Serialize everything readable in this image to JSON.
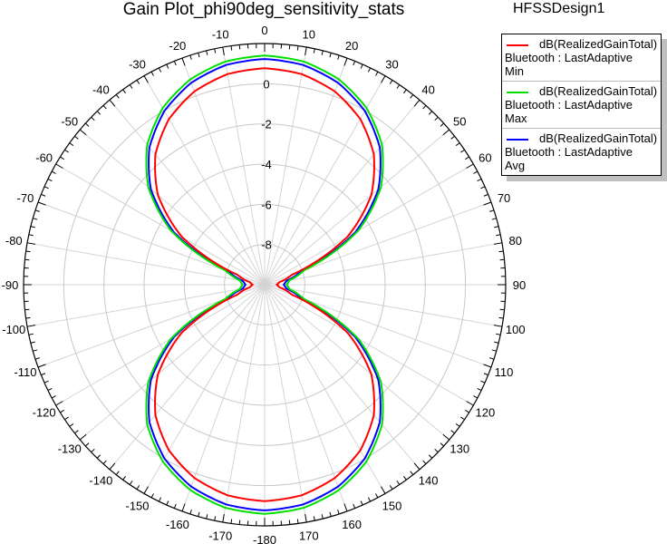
{
  "header": {
    "title": "Gain Plot_phi90deg_sensitivity_stats",
    "design": "HFSSDesign1"
  },
  "chart_data": {
    "type": "polar-line",
    "title": "Gain Plot_phi90deg_sensitivity_stats",
    "angle_unit": "deg",
    "angle_zero": "top",
    "angle_direction": "clockwise",
    "angle_tick_labels": [
      "0",
      "10",
      "20",
      "30",
      "40",
      "50",
      "60",
      "70",
      "80",
      "90",
      "100",
      "110",
      "120",
      "130",
      "140",
      "150",
      "160",
      "170",
      "-180",
      "-170",
      "-160",
      "-150",
      "-140",
      "-130",
      "-120",
      "-110",
      "-100",
      "-90",
      "-80",
      "-70",
      "-60",
      "-50",
      "-40",
      "-30",
      "-20",
      "-10"
    ],
    "radial_range": [
      -10,
      2
    ],
    "radial_tick_labels": [
      "0",
      "-2",
      "-4",
      "-6",
      "-8"
    ],
    "grid": true,
    "legend_position": "top-right",
    "theta": [
      -180,
      -170,
      -160,
      -150,
      -140,
      -130,
      -120,
      -110,
      -100,
      -90,
      -80,
      -70,
      -60,
      -50,
      -40,
      -30,
      -20,
      -10,
      0,
      10,
      20,
      30,
      40,
      50,
      60,
      70,
      80,
      90,
      100,
      110,
      120,
      130,
      140,
      150,
      160,
      170,
      180
    ],
    "series": [
      {
        "name": "dB(RealizedGainTotal)",
        "line2": "Bluetooth : LastAdaptive",
        "line3": "Min",
        "color": "#ff0000",
        "values": [
          0.77,
          0.64,
          0.23,
          -0.48,
          -1.54,
          -3.07,
          -5.25,
          -8.55,
          -9.25,
          -9.4,
          -9.25,
          -8.55,
          -5.25,
          -3.07,
          -1.54,
          -0.48,
          0.23,
          0.64,
          0.77,
          0.64,
          0.23,
          -0.48,
          -1.54,
          -3.07,
          -5.25,
          -8.55,
          -9.25,
          -9.4,
          -9.25,
          -8.55,
          -5.25,
          -3.07,
          -1.54,
          -0.48,
          0.23,
          0.64,
          0.77
        ]
      },
      {
        "name": "dB(RealizedGainTotal)",
        "line2": "Bluetooth : LastAdaptive",
        "line3": "Max",
        "color": "#00e000",
        "values": [
          1.4,
          1.27,
          0.86,
          0.15,
          -0.91,
          -2.44,
          -4.62,
          -7.92,
          -8.75,
          -8.9,
          -8.75,
          -7.92,
          -4.62,
          -2.44,
          -0.91,
          0.15,
          0.86,
          1.27,
          1.4,
          1.27,
          0.86,
          0.15,
          -0.91,
          -2.44,
          -4.62,
          -7.92,
          -8.75,
          -8.9,
          -8.75,
          -7.92,
          -4.62,
          -2.44,
          -0.91,
          0.15,
          0.86,
          1.27,
          1.4
        ]
      },
      {
        "name": "dB(RealizedGainTotal)",
        "line2": "Bluetooth : LastAdaptive",
        "line3": "Avg",
        "color": "#0000ff",
        "values": [
          1.23,
          1.1,
          0.69,
          -0.02,
          -1.08,
          -2.61,
          -4.79,
          -8.09,
          -8.9,
          -9.05,
          -8.9,
          -8.09,
          -4.79,
          -2.61,
          -1.08,
          -0.02,
          0.69,
          1.1,
          1.23,
          1.1,
          0.69,
          -0.02,
          -1.08,
          -2.61,
          -4.79,
          -8.09,
          -8.9,
          -9.05,
          -8.9,
          -8.09,
          -4.79,
          -2.61,
          -1.08,
          -0.02,
          0.69,
          1.1,
          1.23
        ]
      }
    ]
  }
}
